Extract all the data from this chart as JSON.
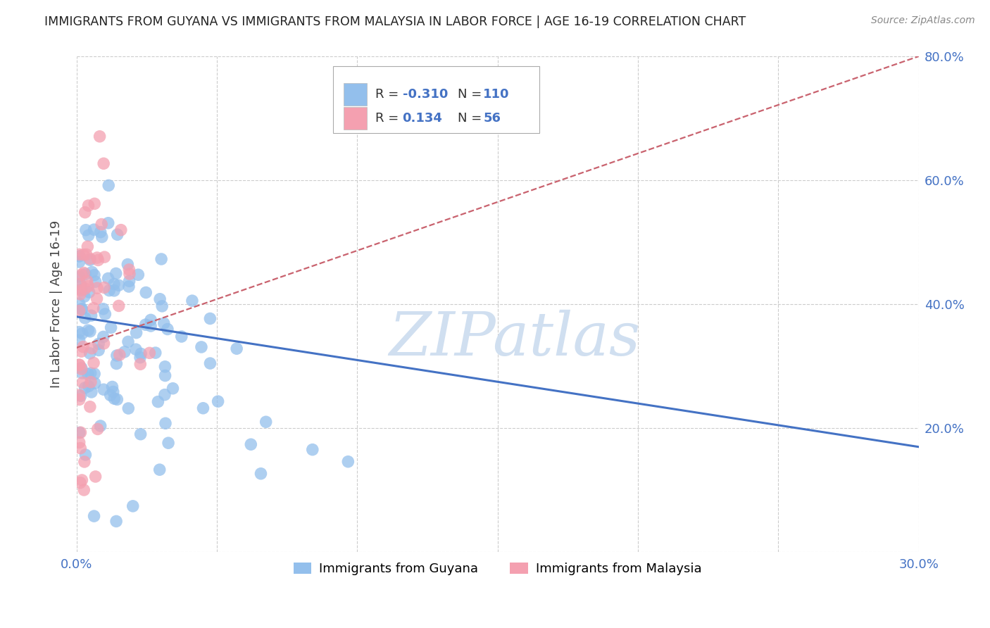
{
  "title": "IMMIGRANTS FROM GUYANA VS IMMIGRANTS FROM MALAYSIA IN LABOR FORCE | AGE 16-19 CORRELATION CHART",
  "source": "Source: ZipAtlas.com",
  "ylabel": "In Labor Force | Age 16-19",
  "legend_label1": "Immigrants from Guyana",
  "legend_label2": "Immigrants from Malaysia",
  "R1": -0.31,
  "N1": 110,
  "R2": 0.134,
  "N2": 56,
  "color1": "#93BFEC",
  "color2": "#F4A0B0",
  "trend_color1": "#4472C4",
  "trend_color2": "#C9626E",
  "xlim": [
    0.0,
    0.3
  ],
  "ylim": [
    0.0,
    0.8
  ],
  "xticks": [
    0.0,
    0.05,
    0.1,
    0.15,
    0.2,
    0.25,
    0.3
  ],
  "yticks": [
    0.0,
    0.2,
    0.4,
    0.6,
    0.8
  ],
  "watermark": "ZIPatlas",
  "watermark_color": "#D0DFF0",
  "grid_color": "#CCCCCC",
  "bg_color": "#FFFFFF",
  "title_color": "#222222",
  "source_color": "#888888",
  "tick_color": "#4472C4",
  "ylabel_color": "#444444"
}
